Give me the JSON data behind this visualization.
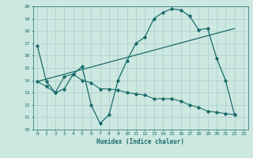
{
  "xlabel": "Humidex (Indice chaleur)",
  "xlim": [
    -0.5,
    23.5
  ],
  "ylim": [
    10,
    20
  ],
  "xticks": [
    0,
    1,
    2,
    3,
    4,
    5,
    6,
    7,
    8,
    9,
    10,
    11,
    12,
    13,
    14,
    15,
    16,
    17,
    18,
    19,
    20,
    21,
    22,
    23
  ],
  "yticks": [
    10,
    11,
    12,
    13,
    14,
    15,
    16,
    17,
    18,
    19,
    20
  ],
  "bg_color": "#cce8e0",
  "line_color": "#1a6b6b",
  "grid_color": "#aacccc",
  "line1_x": [
    0,
    1,
    2,
    3,
    4,
    5,
    6,
    7,
    8,
    9,
    10,
    11,
    12,
    13,
    14,
    15,
    16,
    17,
    18,
    19,
    20,
    21,
    22
  ],
  "line1_y": [
    16.8,
    13.9,
    13.0,
    13.3,
    14.5,
    15.1,
    12.0,
    10.5,
    11.2,
    14.0,
    15.6,
    17.0,
    17.5,
    19.0,
    19.5,
    19.8,
    19.7,
    19.2,
    18.1,
    18.2,
    15.8,
    14.0,
    11.2
  ],
  "line2_x": [
    0,
    1,
    2,
    3,
    4,
    5,
    6,
    7,
    8,
    9,
    10,
    11,
    12,
    13,
    14,
    15,
    16,
    17,
    18,
    19,
    20,
    21,
    22
  ],
  "line2_y": [
    13.9,
    13.5,
    13.0,
    14.3,
    14.5,
    14.0,
    13.8,
    13.3,
    13.3,
    13.2,
    13.0,
    12.9,
    12.8,
    12.5,
    12.5,
    12.5,
    12.3,
    12.0,
    11.8,
    11.5,
    11.4,
    11.3,
    11.2
  ],
  "line3_x": [
    0,
    22
  ],
  "line3_y": [
    13.9,
    18.2
  ]
}
